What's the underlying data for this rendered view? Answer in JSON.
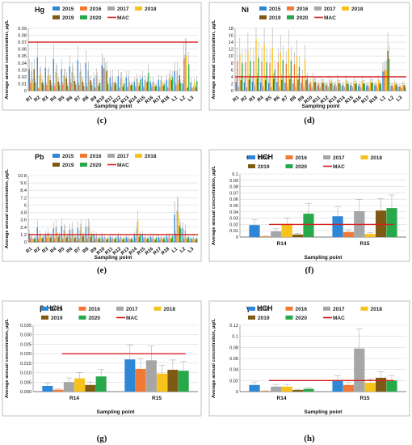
{
  "colors": {
    "2015": "#2e86d6",
    "2016": "#f07a35",
    "2017": "#a6a6a6",
    "2018": "#f7c21c",
    "2019": "#7f5a12",
    "2020": "#27a84a",
    "MAC": "#d61f1f"
  },
  "chart_data": [
    {
      "type": "bar",
      "panel": "(c)",
      "title": "Hg",
      "xlabel": "Sampling point",
      "ylabel": "Average annual concentration, µg/L",
      "legend": [
        "2015",
        "2016",
        "2017",
        "2018",
        "2019",
        "2020",
        "MAC"
      ],
      "legend_placement": "top",
      "grid": "horizontal",
      "ylim": [
        0,
        0.09
      ],
      "yticks": [
        "0",
        "0.01",
        "0.02",
        "0.03",
        "0.04",
        "0.05",
        "0.06",
        "0.07",
        "0.08",
        "0.09"
      ],
      "categories": [
        "R1",
        "R2",
        "R3",
        "R4",
        "R5",
        "R6",
        "R7",
        "R8",
        "R9",
        "R10",
        "R11",
        "R12",
        "R13",
        "R14",
        "R15",
        "R16",
        "R17",
        "R18",
        "L1",
        "L2",
        "L3"
      ],
      "mac": 0.07,
      "series": [
        {
          "name": "2015",
          "values": [
            0.031,
            0.048,
            0.033,
            0.046,
            0.031,
            0.035,
            0.044,
            0.04,
            0.018,
            0.037,
            0.019,
            0.021,
            0.019,
            0.013,
            0.019,
            0.013,
            0.016,
            0.016,
            0.028,
            0.01,
            0.012
          ]
        },
        {
          "name": "2016",
          "values": [
            0.011,
            0.003,
            0.008,
            0.007,
            0.009,
            0.011,
            0.008,
            0.006,
            0.004,
            0.033,
            0.006,
            0.004,
            0.005,
            0.005,
            0.005,
            0.006,
            0.005,
            0.004,
            0.008,
            0.047,
            0.003
          ]
        },
        {
          "name": "2017",
          "values": [
            0.028,
            0.022,
            0.021,
            0.027,
            0.022,
            0.027,
            0.027,
            0.029,
            0.022,
            0.032,
            0.02,
            0.018,
            0.019,
            0.017,
            0.015,
            0.013,
            0.015,
            0.017,
            0.028,
            0.052,
            0.005
          ]
        },
        {
          "name": "2018",
          "values": [
            0.011,
            0.024,
            0.023,
            0.025,
            0.021,
            0.024,
            0.02,
            0.013,
            0.018,
            0.027,
            0.008,
            0.018,
            0.009,
            0.012,
            0.011,
            0.009,
            0.012,
            0.02,
            0.01,
            0.051,
            0.012
          ]
        },
        {
          "name": "2019",
          "values": [
            0.031,
            0.012,
            0.015,
            0.013,
            0.018,
            0.014,
            0.013,
            0.015,
            0.007,
            0.029,
            0.012,
            0.006,
            0.008,
            0.007,
            0.013,
            0.006,
            0.007,
            0.015,
            0.022,
            0.004,
            0.005
          ]
        },
        {
          "name": "2020",
          "values": [
            0.012,
            0.009,
            0.008,
            0.008,
            0.007,
            0.009,
            0.007,
            0.008,
            0.011,
            0.009,
            0.009,
            0.01,
            0.008,
            0.016,
            0.026,
            0.007,
            0.009,
            0.019,
            0.011,
            0.038,
            0.014
          ]
        }
      ]
    },
    {
      "type": "bar",
      "panel": "(d)",
      "title": "Ni",
      "xlabel": "Sampling point",
      "ylabel": "Average annual concentration, µg/L",
      "legend": [
        "2015",
        "2016",
        "2017",
        "2018",
        "2019",
        "2020",
        "MAC"
      ],
      "legend_placement": "top",
      "grid": "horizontal",
      "ylim": [
        0,
        18
      ],
      "yticks": [
        "0",
        "2",
        "4",
        "6",
        "8",
        "10",
        "12",
        "14",
        "16",
        "18"
      ],
      "categories": [
        "R1",
        "R2",
        "R3",
        "R4",
        "R5",
        "R6",
        "R7",
        "R8",
        "R9",
        "R10",
        "R11",
        "R12",
        "R13",
        "R14",
        "R15",
        "R16",
        "R17",
        "R18",
        "L1",
        "L2",
        "L3"
      ],
      "mac": 4,
      "series": [
        {
          "name": "2015",
          "values": [
            2.5,
            2.4,
            2.6,
            2.3,
            2.2,
            2.5,
            2.3,
            2.0,
            2.2,
            1.8,
            1.5,
            1.6,
            1.5,
            1.4,
            1.5,
            1.3,
            1.4,
            1.5,
            5.5,
            1.4,
            1.2
          ]
        },
        {
          "name": "2016",
          "values": [
            8.5,
            8.2,
            8.6,
            8.4,
            8.0,
            8.3,
            7.8,
            7.6,
            4.0,
            2.3,
            2.0,
            1.8,
            1.9,
            1.7,
            1.6,
            1.8,
            1.7,
            1.9,
            5.6,
            1.5,
            1.1
          ]
        },
        {
          "name": "2017",
          "values": [
            1.0,
            0.8,
            1.2,
            1.1,
            0.9,
            1.0,
            1.2,
            1.1,
            1.0,
            0.9,
            0.8,
            0.9,
            1.0,
            0.8,
            0.9,
            0.8,
            0.9,
            1.0,
            5.9,
            0.9,
            0.7
          ]
        },
        {
          "name": "2018",
          "values": [
            10.5,
            11.5,
            15.0,
            13.5,
            12.5,
            11.0,
            12.0,
            10.0,
            9.0,
            3.5,
            2.5,
            3.0,
            3.2,
            3.0,
            2.8,
            2.9,
            2.6,
            3.0,
            6.0,
            2.2,
            1.8
          ]
        },
        {
          "name": "2019",
          "values": [
            3.0,
            3.2,
            3.5,
            3.0,
            3.4,
            3.1,
            3.3,
            3.2,
            3.0,
            2.4,
            2.2,
            2.0,
            2.1,
            2.0,
            1.9,
            2.0,
            2.2,
            2.1,
            11.5,
            1.8,
            1.6
          ]
        },
        {
          "name": "2020",
          "values": [
            8.0,
            8.5,
            9.5,
            8.2,
            6.0,
            8.8,
            8.6,
            6.8,
            3.5,
            2.5,
            2.2,
            2.3,
            2.0,
            1.9,
            2.1,
            2.0,
            2.3,
            1.8,
            9.2,
            1.3,
            1.0
          ]
        }
      ]
    },
    {
      "type": "bar",
      "panel": "(e)",
      "title": "Pb",
      "xlabel": "Sampling point",
      "ylabel": "Average annual concentration, µg/L",
      "legend": [
        "2015",
        "2016",
        "2017",
        "2018",
        "2019",
        "2020",
        "MAC"
      ],
      "legend_placement": "top",
      "grid": "horizontal",
      "ylim": [
        0,
        10.8
      ],
      "yticks": [
        "0",
        "1.2",
        "2.4",
        "3.6",
        "4.8",
        "6",
        "7.2",
        "8.4",
        "9.6",
        "10.8"
      ],
      "categories": [
        "R1",
        "R2",
        "R3",
        "R4",
        "R5",
        "R6",
        "R7",
        "R8",
        "R9",
        "R10",
        "R11",
        "R12",
        "R13",
        "R14",
        "R15",
        "R16",
        "R17",
        "R18",
        "L1",
        "L2",
        "L3"
      ],
      "mac": 1.2,
      "series": [
        {
          "name": "2015",
          "values": [
            1.3,
            2.4,
            1.2,
            2.2,
            2.6,
            2.0,
            2.3,
            2.4,
            1.2,
            1.0,
            0.9,
            1.0,
            0.8,
            1.1,
            1.2,
            0.9,
            0.8,
            1.0,
            4.5,
            2.2,
            0.6
          ]
        },
        {
          "name": "2016",
          "values": [
            0.6,
            0.5,
            0.7,
            0.6,
            0.5,
            0.6,
            0.5,
            0.6,
            0.5,
            0.4,
            0.5,
            0.4,
            0.5,
            0.6,
            0.5,
            0.5,
            0.4,
            0.5,
            1.2,
            0.5,
            0.4
          ]
        },
        {
          "name": "2017",
          "values": [
            0.9,
            1.3,
            1.5,
            2.4,
            2.0,
            2.2,
            2.0,
            2.6,
            1.0,
            0.8,
            0.7,
            0.8,
            0.6,
            2.2,
            0.8,
            0.9,
            0.8,
            1.0,
            5.1,
            1.9,
            0.7
          ]
        },
        {
          "name": "2018",
          "values": [
            0.4,
            0.9,
            1.0,
            1.6,
            1.8,
            1.4,
            2.5,
            2.3,
            0.6,
            0.5,
            0.4,
            0.5,
            0.4,
            3.5,
            0.5,
            0.4,
            0.5,
            0.6,
            4.8,
            0.5,
            0.4
          ]
        },
        {
          "name": "2019",
          "values": [
            0.5,
            0.6,
            0.7,
            0.8,
            0.7,
            0.6,
            0.9,
            0.8,
            0.5,
            0.4,
            0.5,
            0.4,
            0.5,
            0.8,
            0.5,
            0.4,
            0.5,
            0.6,
            2.6,
            0.6,
            0.4
          ]
        },
        {
          "name": "2020",
          "values": [
            0.7,
            0.8,
            0.9,
            1.0,
            0.9,
            0.8,
            1.0,
            1.1,
            0.7,
            0.6,
            0.7,
            0.6,
            0.5,
            1.1,
            0.6,
            0.7,
            0.6,
            0.9,
            2.2,
            0.8,
            0.6
          ]
        }
      ]
    },
    {
      "type": "bar",
      "panel": "(f)",
      "title": "α - HCH",
      "xlabel": "Sampling point",
      "ylabel": "Average annual concentration, µg/L",
      "legend": [
        "2015",
        "2016",
        "2017",
        "2018",
        "2019",
        "2020",
        "MAC"
      ],
      "legend_placement": "top",
      "grid": "horizontal",
      "ylim": [
        0,
        0.1
      ],
      "yticks": [
        "0",
        "0.01",
        "0.02",
        "0.03",
        "0.04",
        "0.05",
        "0.06",
        "0.07",
        "0.08",
        "0.09",
        "0.1"
      ],
      "categories": [
        "R14",
        "R15"
      ],
      "mac": 0.02,
      "series": [
        {
          "name": "2015",
          "values": [
            0.019,
            0.033
          ]
        },
        {
          "name": "2016",
          "values": [
            0.001,
            0.008
          ]
        },
        {
          "name": "2017",
          "values": [
            0.009,
            0.041
          ]
        },
        {
          "name": "2018",
          "values": [
            0.021,
            0.005
          ]
        },
        {
          "name": "2019",
          "values": [
            0.004,
            0.042
          ]
        },
        {
          "name": "2020",
          "values": [
            0.037,
            0.046
          ]
        }
      ]
    },
    {
      "type": "bar",
      "panel": "(g)",
      "title": "β-HCH",
      "xlabel": "Sampling point",
      "ylabel": "Average annual concentration, µg/L",
      "legend": [
        "2015",
        "2016",
        "2017",
        "2018",
        "2019",
        "2020",
        "MAC"
      ],
      "legend_placement": "top",
      "grid": "horizontal",
      "ylim": [
        0,
        0.035
      ],
      "yticks": [
        "0.000",
        "0.005",
        "0.010",
        "0.015",
        "0.020",
        "0.025",
        "0.030",
        "0.035"
      ],
      "categories": [
        "R14",
        "R15"
      ],
      "mac": 0.02,
      "series": [
        {
          "name": "2015",
          "values": [
            0.003,
            0.017
          ]
        },
        {
          "name": "2016",
          "values": [
            0.001,
            0.012
          ]
        },
        {
          "name": "2017",
          "values": [
            0.005,
            0.0165
          ]
        },
        {
          "name": "2018",
          "values": [
            0.007,
            0.0095
          ]
        },
        {
          "name": "2019",
          "values": [
            0.0035,
            0.0115
          ]
        },
        {
          "name": "2020",
          "values": [
            0.008,
            0.011
          ]
        }
      ]
    },
    {
      "type": "bar",
      "panel": "(h)",
      "title": "γ - HCH",
      "xlabel": "Sampling point",
      "ylabel": "Average annual concentration, µg/L",
      "legend": [
        "2015",
        "2016",
        "2017",
        "2018",
        "2019",
        "2020",
        "MAC"
      ],
      "legend_placement": "top",
      "grid": "horizontal",
      "ylim": [
        0,
        0.12
      ],
      "yticks": [
        "0",
        "0.02",
        "0.04",
        "0.06",
        "0.08",
        "0.1",
        "0.12"
      ],
      "categories": [
        "R14",
        "R15"
      ],
      "mac": 0.02,
      "series": [
        {
          "name": "2015",
          "values": [
            0.012,
            0.02
          ]
        },
        {
          "name": "2016",
          "values": [
            0.001,
            0.012
          ]
        },
        {
          "name": "2017",
          "values": [
            0.009,
            0.078
          ]
        },
        {
          "name": "2018",
          "values": [
            0.009,
            0.016
          ]
        },
        {
          "name": "2019",
          "values": [
            0.003,
            0.025
          ]
        },
        {
          "name": "2020",
          "values": [
            0.005,
            0.02
          ]
        }
      ]
    }
  ]
}
